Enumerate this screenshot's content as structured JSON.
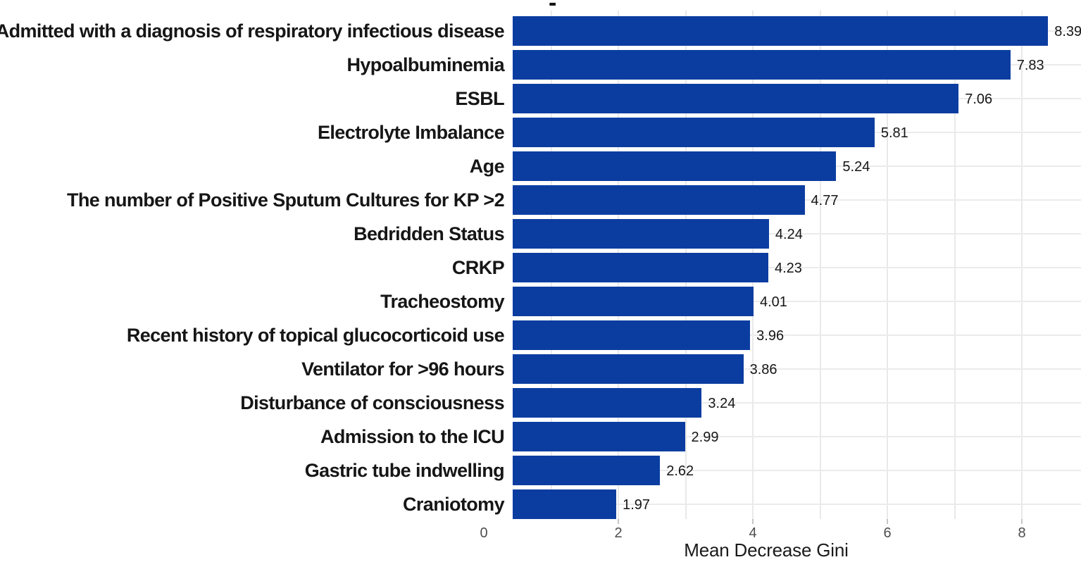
{
  "chart_data": {
    "type": "bar",
    "orientation": "horizontal",
    "title": "",
    "title_dash": "-",
    "xlabel": "Mean Decrease Gini",
    "ylabel": "",
    "x_tick_labels": [
      "0",
      "2",
      "4",
      "6",
      "8"
    ],
    "x_tick_values": [
      0,
      2,
      4,
      6,
      8
    ],
    "xlim": [
      0,
      8.9
    ],
    "grid": "on",
    "legend": "none",
    "categories": [
      "Admitted with a diagnosis of respiratory infectious disease",
      "Hypoalbuminemia",
      "ESBL",
      "Electrolyte Imbalance",
      "Age",
      "The number of Positive Sputum Cultures for KP >2",
      "Bedridden Status",
      "CRKP",
      "Tracheostomy",
      "Recent history of topical glucocorticoid use",
      "Ventilator for >96 hours",
      "Disturbance of consciousness",
      "Admission to the ICU",
      "Gastric tube indwelling",
      "Craniotomy"
    ],
    "values": [
      8.39,
      7.83,
      7.06,
      5.81,
      5.24,
      4.77,
      4.24,
      4.23,
      4.01,
      3.96,
      3.86,
      3.24,
      2.99,
      2.62,
      1.97
    ],
    "value_labels": [
      "8.39",
      "7.83",
      "7.06",
      "5.81",
      "5.24",
      "4.77",
      "4.24",
      "4.23",
      "4.01",
      "3.96",
      "3.86",
      "3.24",
      "2.99",
      "2.62",
      "1.97"
    ],
    "colors": {
      "bar": "#0b3da1",
      "grid": "#e9e9e9",
      "tick_text": "#4d4d4d",
      "label_text": "#161616",
      "axis_title_text": "#1a1a1a",
      "background": "#ffffff"
    }
  }
}
